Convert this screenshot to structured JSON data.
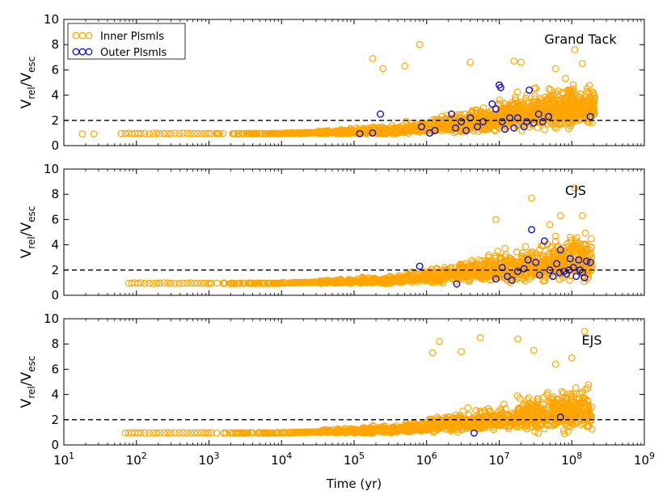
{
  "colors": {
    "inner": "#ffa500",
    "outer": "#1010c0",
    "frame": "#000000",
    "reference": "#000000"
  },
  "chart_data": {
    "type": "scatter",
    "x_scale": "log",
    "xlabel": "Time (yr)",
    "xlim": [
      10,
      1000000000
    ],
    "x_ticks": [
      {
        "value": 10,
        "base": "10",
        "exp": "1"
      },
      {
        "value": 100,
        "base": "10",
        "exp": "2"
      },
      {
        "value": 1000,
        "base": "10",
        "exp": "3"
      },
      {
        "value": 10000,
        "base": "10",
        "exp": "4"
      },
      {
        "value": 100000,
        "base": "10",
        "exp": "5"
      },
      {
        "value": 1000000,
        "base": "10",
        "exp": "6"
      },
      {
        "value": 10000000,
        "base": "10",
        "exp": "7"
      },
      {
        "value": 100000000,
        "base": "10",
        "exp": "8"
      },
      {
        "value": 1000000000,
        "base": "10",
        "exp": "9"
      }
    ],
    "ylabel": {
      "main": "V",
      "sub1": "rel",
      "sep": "/V",
      "sub2": "esc"
    },
    "ylim": [
      0,
      10
    ],
    "y_ticks": [
      "0",
      "2",
      "4",
      "6",
      "8",
      "10"
    ],
    "reference_line_y": 2,
    "legend": {
      "location": "upper-left",
      "entries": [
        {
          "label": "Inner Plsmls",
          "series": "inner"
        },
        {
          "label": "Outer Plsmls",
          "series": "outer"
        }
      ]
    },
    "panels": [
      {
        "title": "Grand Tack",
        "show_legend": true,
        "outer_points": [
          [
            120000,
            0.95
          ],
          [
            180000,
            1.0
          ],
          [
            230000,
            2.5
          ],
          [
            850000,
            1.5
          ],
          [
            1100000,
            1.0
          ],
          [
            1300000,
            1.2
          ],
          [
            2200000,
            2.5
          ],
          [
            2500000,
            1.4
          ],
          [
            3000000,
            1.9
          ],
          [
            3500000,
            1.2
          ],
          [
            4000000,
            2.2
          ],
          [
            5000000,
            1.5
          ],
          [
            6000000,
            1.9
          ],
          [
            8000000,
            3.3
          ],
          [
            9000000,
            2.9
          ],
          [
            10000000,
            4.8
          ],
          [
            10500000,
            4.6
          ],
          [
            11000000,
            1.9
          ],
          [
            12000000,
            1.3
          ],
          [
            14000000,
            2.2
          ],
          [
            16000000,
            1.4
          ],
          [
            18000000,
            2.2
          ],
          [
            22000000,
            1.5
          ],
          [
            24000000,
            1.9
          ],
          [
            26000000,
            4.4
          ],
          [
            30000000,
            1.8
          ],
          [
            35000000,
            2.5
          ],
          [
            40000000,
            1.9
          ],
          [
            48000000,
            2.3
          ],
          [
            180000000,
            2.3
          ]
        ]
      },
      {
        "title": "CJS",
        "show_legend": false,
        "outer_points": [
          [
            800000,
            2.3
          ],
          [
            2600000,
            0.9
          ],
          [
            9000000,
            1.3
          ],
          [
            11000000,
            2.2
          ],
          [
            13000000,
            1.5
          ],
          [
            15000000,
            1.2
          ],
          [
            18000000,
            1.9
          ],
          [
            22000000,
            2.1
          ],
          [
            25000000,
            2.8
          ],
          [
            28000000,
            5.2
          ],
          [
            32000000,
            2.6
          ],
          [
            36000000,
            1.6
          ],
          [
            42000000,
            4.3
          ],
          [
            50000000,
            2.0
          ],
          [
            55000000,
            1.5
          ],
          [
            62000000,
            2.5
          ],
          [
            70000000,
            3.6
          ],
          [
            78000000,
            1.9
          ],
          [
            85000000,
            1.7
          ],
          [
            92000000,
            2.0
          ],
          [
            105000000,
            2.2
          ],
          [
            115000000,
            1.5
          ],
          [
            125000000,
            2.8
          ],
          [
            140000000,
            1.8
          ],
          [
            150000000,
            1.4
          ],
          [
            160000000,
            2.7
          ],
          [
            180000000,
            2.6
          ],
          [
            95000000,
            2.9
          ],
          [
            68000000,
            1.8
          ],
          [
            130000000,
            2.0
          ]
        ]
      },
      {
        "title": "EJS",
        "show_legend": false,
        "outer_points": [
          [
            4500000,
            0.95
          ],
          [
            70000000,
            2.2
          ]
        ]
      }
    ]
  }
}
